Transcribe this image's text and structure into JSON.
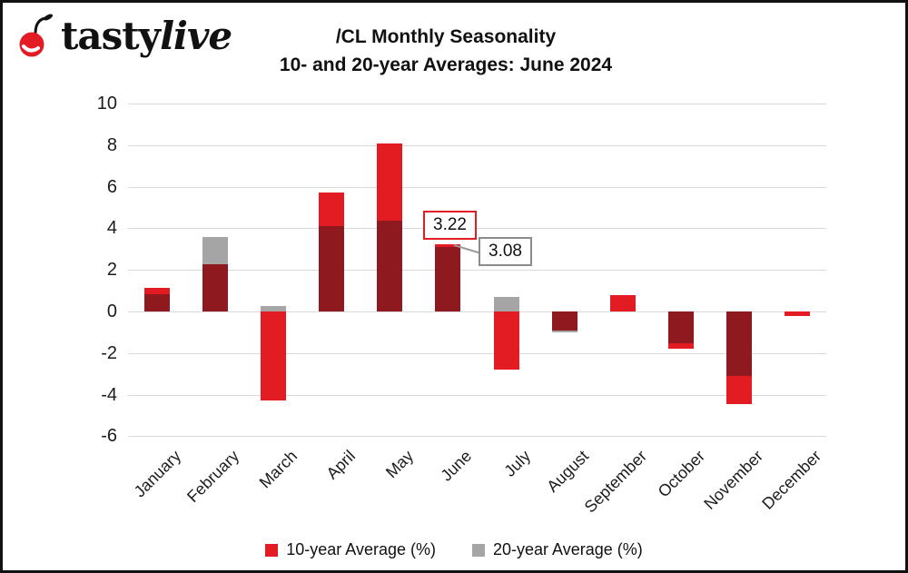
{
  "logo": {
    "brand_bold": "tasty",
    "brand_italic": "live"
  },
  "header": {
    "title_line1": "/CL Monthly Seasonality",
    "title_line2": "10- and 20-year Averages: June 2024"
  },
  "chart_data": {
    "type": "bar",
    "layout": "overlapped-bars",
    "title": "/CL Monthly Seasonality",
    "subtitle": "10- and 20-year Averages: June 2024",
    "categories": [
      "January",
      "February",
      "March",
      "April",
      "May",
      "June",
      "July",
      "August",
      "September",
      "October",
      "November",
      "December"
    ],
    "series": [
      {
        "name": "10-year Average (%)",
        "color": "#e31b23",
        "values": [
          1.15,
          2.3,
          -4.3,
          5.7,
          8.1,
          3.22,
          -2.8,
          -0.9,
          0.8,
          -1.8,
          -4.45,
          -0.2
        ]
      },
      {
        "name": "20-year Average (%)",
        "color": "#a5a5a5",
        "values": [
          0.85,
          3.6,
          0.25,
          4.1,
          4.4,
          3.08,
          0.7,
          -1.0,
          0.0,
          -1.55,
          -3.1,
          0.0
        ]
      }
    ],
    "overlap_color": "#8e1a20",
    "ylim": [
      -6,
      10
    ],
    "yticks": [
      10,
      8,
      6,
      4,
      2,
      0,
      -2,
      -4,
      -6
    ],
    "grid": true,
    "grid_color": "#d9d9d9",
    "legend_position": "bottom",
    "annotations": [
      {
        "category": "June",
        "series": "10-year Average (%)",
        "label": "3.22"
      },
      {
        "category": "June",
        "series": "20-year Average (%)",
        "label": "3.08"
      }
    ]
  },
  "legend": {
    "items": [
      {
        "label": "10-year Average (%)",
        "color": "#e31b23"
      },
      {
        "label": "20-year Average (%)",
        "color": "#a5a5a5"
      }
    ]
  }
}
